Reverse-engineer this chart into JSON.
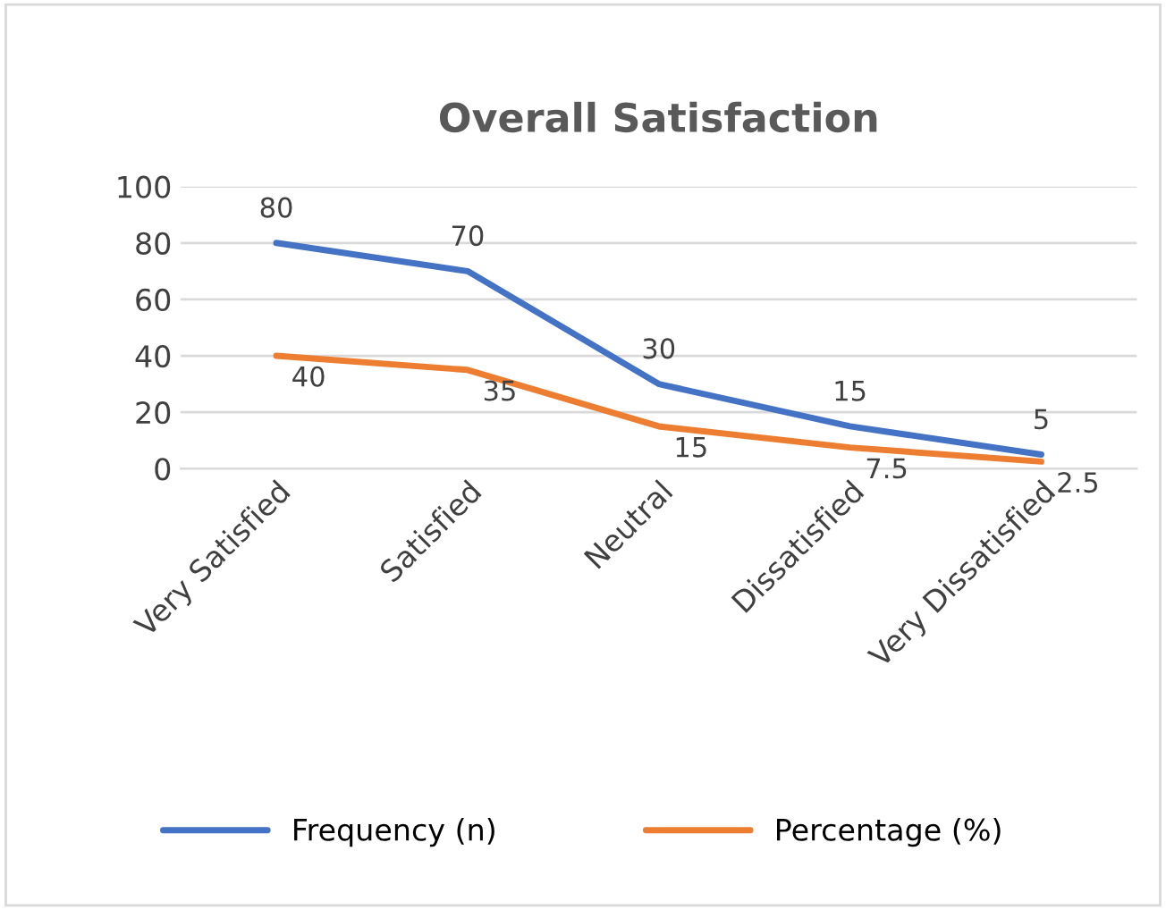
{
  "chart_data": {
    "type": "line",
    "title": "Overall Satisfaction",
    "categories": [
      "Very Satisfied",
      "Satisfied",
      "Neutral",
      "Dissatisfied",
      "Very Dissatisfied"
    ],
    "series": [
      {
        "name": "Frequency (n)",
        "color": "#4472c4",
        "values": [
          80,
          70,
          30,
          15,
          5
        ]
      },
      {
        "name": "Percentage (%)",
        "color": "#ed7d31",
        "values": [
          40,
          35,
          15,
          7.5,
          2.5
        ]
      }
    ],
    "ylim": [
      0,
      100
    ],
    "yticks": [
      0,
      20,
      40,
      60,
      80,
      100
    ],
    "grid": "y",
    "legend": "bottom",
    "data_labels": true,
    "marker": "none",
    "line_style": "solid"
  }
}
